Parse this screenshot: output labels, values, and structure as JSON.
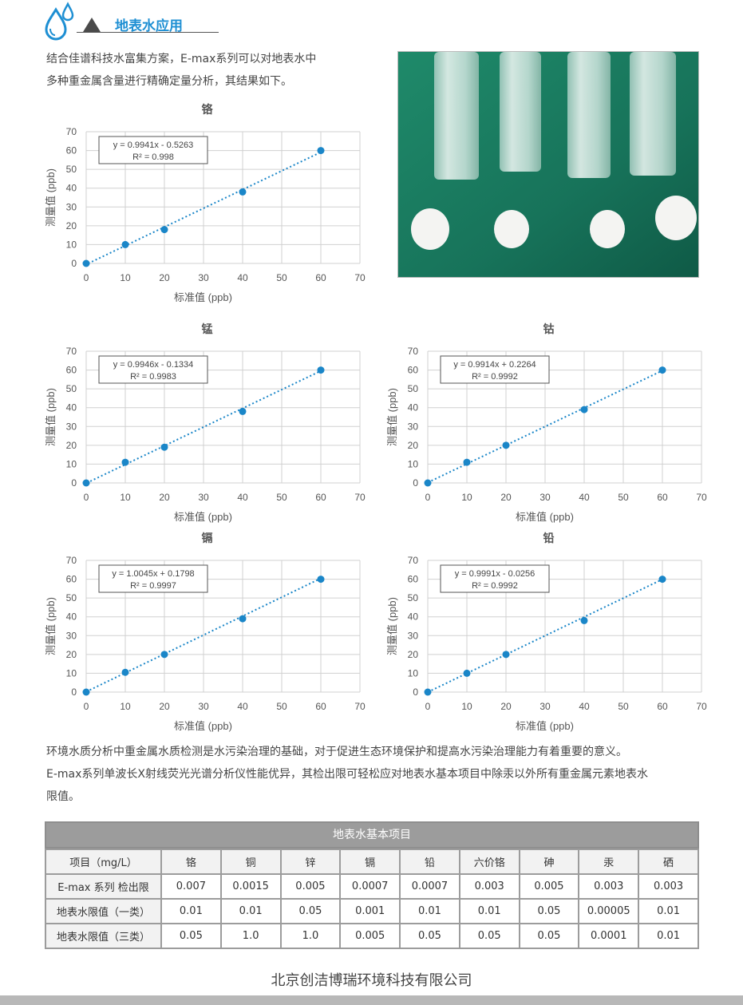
{
  "header": {
    "title": "地表水应用"
  },
  "intro": {
    "line1": "结合佳谱科技水富集方案，E-max系列可以对地表水中",
    "line2": "多种重金属含量进行精确定量分析，其结果如下。"
  },
  "colors": {
    "accent": "#1e8fd3",
    "series": "#1a86c8",
    "grid": "#d0d0d0"
  },
  "chart_data": [
    {
      "type": "scatter",
      "title": "铬",
      "xlabel": "标准值 (ppb)",
      "ylabel": "测量值 (ppb)",
      "x": [
        0,
        10,
        20,
        40,
        60
      ],
      "y": [
        0,
        10,
        18,
        38,
        60
      ],
      "xlim": [
        0,
        70
      ],
      "ylim": [
        0,
        70
      ],
      "xticks": [
        0,
        10,
        20,
        30,
        40,
        50,
        60,
        70
      ],
      "yticks": [
        0,
        10,
        20,
        30,
        40,
        50,
        60,
        70
      ],
      "trendline": {
        "slope": 0.9941,
        "intercept": -0.5263
      },
      "equation": "y = 0.9941x - 0.5263",
      "r2": "R² = 0.998",
      "grid": true
    },
    {
      "type": "scatter",
      "title": "锰",
      "xlabel": "标准值 (ppb)",
      "ylabel": "测量值 (ppb)",
      "x": [
        0,
        10,
        20,
        40,
        60
      ],
      "y": [
        0,
        11,
        19,
        38,
        60
      ],
      "xlim": [
        0,
        70
      ],
      "ylim": [
        0,
        70
      ],
      "xticks": [
        0,
        10,
        20,
        30,
        40,
        50,
        60,
        70
      ],
      "yticks": [
        0,
        10,
        20,
        30,
        40,
        50,
        60,
        70
      ],
      "trendline": {
        "slope": 0.9946,
        "intercept": -0.1334
      },
      "equation": "y = 0.9946x - 0.1334",
      "r2": "R² = 0.9983",
      "grid": true
    },
    {
      "type": "scatter",
      "title": "钴",
      "xlabel": "标准值 (ppb)",
      "ylabel": "测量值 (ppb)",
      "x": [
        0,
        10,
        20,
        40,
        60
      ],
      "y": [
        0,
        11,
        20,
        39,
        60
      ],
      "xlim": [
        0,
        70
      ],
      "ylim": [
        0,
        70
      ],
      "xticks": [
        0,
        10,
        20,
        30,
        40,
        50,
        60,
        70
      ],
      "yticks": [
        0,
        10,
        20,
        30,
        40,
        50,
        60,
        70
      ],
      "trendline": {
        "slope": 0.9914,
        "intercept": 0.2264
      },
      "equation": "y = 0.9914x + 0.2264",
      "r2": "R² = 0.9992",
      "grid": true
    },
    {
      "type": "scatter",
      "title": "镉",
      "xlabel": "标准值 (ppb)",
      "ylabel": "测量值 (ppb)",
      "x": [
        0,
        10,
        20,
        40,
        60
      ],
      "y": [
        0,
        10.5,
        20,
        39,
        60
      ],
      "xlim": [
        0,
        70
      ],
      "ylim": [
        0,
        70
      ],
      "xticks": [
        0,
        10,
        20,
        30,
        40,
        50,
        60,
        70
      ],
      "yticks": [
        0,
        10,
        20,
        30,
        40,
        50,
        60,
        70
      ],
      "trendline": {
        "slope": 1.0045,
        "intercept": 0.1798
      },
      "equation": "y = 1.0045x + 0.1798",
      "r2": "R² = 0.9997",
      "grid": true
    },
    {
      "type": "scatter",
      "title": "铅",
      "xlabel": "标准值 (ppb)",
      "ylabel": "测量值 (ppb)",
      "x": [
        0,
        10,
        20,
        40,
        60
      ],
      "y": [
        0,
        10,
        20,
        38,
        60
      ],
      "xlim": [
        0,
        70
      ],
      "ylim": [
        0,
        70
      ],
      "xticks": [
        0,
        10,
        20,
        30,
        40,
        50,
        60,
        70
      ],
      "yticks": [
        0,
        10,
        20,
        30,
        40,
        50,
        60,
        70
      ],
      "trendline": {
        "slope": 0.9991,
        "intercept": -0.0256
      },
      "equation": "y = 0.9991x - 0.0256",
      "r2": "R² = 0.9992",
      "grid": true
    }
  ],
  "paragraph": {
    "line1": "环境水质分析中重金属水质检测是水污染治理的基础，对于促进生态环境保护和提高水污染治理能力有着重要的意义。",
    "line2": "E-max系列单波长X射线荧光光谱分析仪性能优异，其检出限可轻松应对地表水基本项目中除汞以外所有重金属元素地表水",
    "line3": "限值。"
  },
  "table": {
    "caption": "地表水基本项目",
    "header": [
      "项目（mg/L）",
      "铬",
      "铜",
      "锌",
      "镉",
      "铅",
      "六价铬",
      "砷",
      "汞",
      "硒"
    ],
    "rows": [
      [
        "E-max 系列 检出限",
        "0.007",
        "0.0015",
        "0.005",
        "0.0007",
        "0.0007",
        "0.003",
        "0.005",
        "0.003",
        "0.003"
      ],
      [
        "地表水限值（一类）",
        "0.01",
        "0.01",
        "0.05",
        "0.001",
        "0.01",
        "0.01",
        "0.05",
        "0.00005",
        "0.01"
      ],
      [
        "地表水限值（三类）",
        "0.05",
        "1.0",
        "1.0",
        "0.005",
        "0.05",
        "0.05",
        "0.05",
        "0.0001",
        "0.01"
      ]
    ]
  },
  "footer": {
    "company": "北京创洁博瑞环境科技有限公司"
  }
}
